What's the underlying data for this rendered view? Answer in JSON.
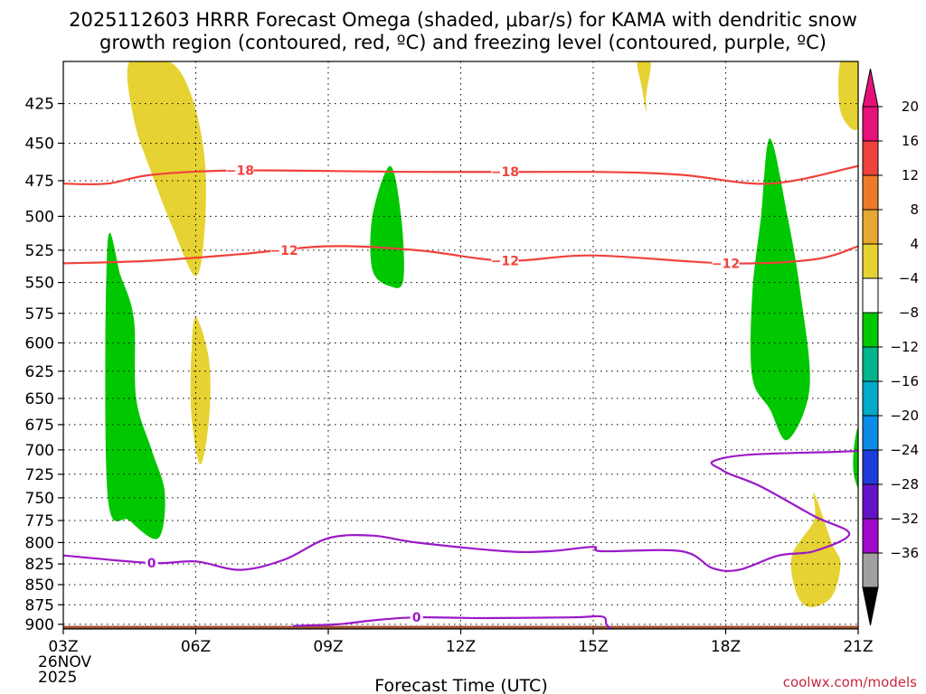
{
  "title_line1": "2025112603 HRRR Forecast Omega (shaded, μbar/s) for KAMA with dendritic snow",
  "title_line2": "growth region (contoured, red, ºC) and freezing level (contoured, purple, ºC)",
  "credit": "coolwx.com/models",
  "chart_data": {
    "type": "contour",
    "xlabel": "Forecast Time (UTC)",
    "x_ticks": [
      "03Z",
      "06Z",
      "09Z",
      "12Z",
      "15Z",
      "18Z",
      "21Z"
    ],
    "x_first_date": [
      "26NOV",
      "2025"
    ],
    "x_hours": [
      0,
      3,
      6,
      9,
      12,
      15,
      18
    ],
    "y_levels_mb": [
      425,
      450,
      475,
      500,
      525,
      550,
      575,
      600,
      625,
      650,
      675,
      700,
      725,
      750,
      775,
      800,
      825,
      850,
      875,
      900
    ],
    "y_range_mb": [
      400,
      906
    ],
    "y_scale": "log-pressure",
    "grid": true,
    "colorbar": {
      "unit": "μbar/s",
      "tick_labels": [
        "20",
        "16",
        "12",
        "8",
        "4",
        "−4",
        "−8",
        "−12",
        "−16",
        "−20",
        "−24",
        "−28",
        "−32",
        "−36"
      ],
      "bands": [
        {
          "from": 20,
          "to": 24,
          "color": "#e6127a"
        },
        {
          "from": 16,
          "to": 20,
          "color": "#f0423c"
        },
        {
          "from": 12,
          "to": 16,
          "color": "#ec7a28"
        },
        {
          "from": 8,
          "to": 12,
          "color": "#e6a832"
        },
        {
          "from": 4,
          "to": 8,
          "color": "#e6d232"
        },
        {
          "from": -4,
          "to": 4,
          "color": "#ffffff"
        },
        {
          "from": -8,
          "to": -4,
          "color": "#00c800"
        },
        {
          "from": -12,
          "to": -8,
          "color": "#00b48c"
        },
        {
          "from": -16,
          "to": -12,
          "color": "#00aac8"
        },
        {
          "from": -20,
          "to": -16,
          "color": "#0a8ce6"
        },
        {
          "from": -24,
          "to": -20,
          "color": "#1e3cdc"
        },
        {
          "from": -28,
          "to": -24,
          "color": "#6414c8"
        },
        {
          "from": -32,
          "to": -28,
          "color": "#a00ac8"
        },
        {
          "from": -36,
          "to": -32,
          "color": "#a0a0a0"
        }
      ],
      "low_arrow_color": "#000000",
      "high_arrow_color": "#e6127a"
    },
    "omega_regions": [
      {
        "sign": "upward",
        "color": "#00c800",
        "points": [
          [
            1.0,
            521
          ],
          [
            1.3,
            545
          ],
          [
            1.6,
            580
          ],
          [
            1.65,
            650
          ],
          [
            2.0,
            700
          ],
          [
            2.3,
            745
          ],
          [
            2.15,
            795
          ],
          [
            1.5,
            775
          ],
          [
            1.0,
            745
          ]
        ]
      },
      {
        "sign": "upward",
        "color": "#00c800",
        "points": [
          [
            7.4,
            465
          ],
          [
            7.65,
            500
          ],
          [
            7.7,
            548
          ],
          [
            7.4,
            553
          ],
          [
            7.0,
            540
          ],
          [
            7.0,
            500
          ]
        ]
      },
      {
        "sign": "upward",
        "color": "#00c800",
        "points": [
          [
            16.0,
            447
          ],
          [
            16.4,
            500
          ],
          [
            16.7,
            560
          ],
          [
            16.9,
            640
          ],
          [
            16.4,
            690
          ],
          [
            16.0,
            660
          ],
          [
            15.6,
            630
          ],
          [
            15.6,
            560
          ],
          [
            15.8,
            500
          ]
        ]
      },
      {
        "sign": "upward",
        "color": "#00c800",
        "points": [
          [
            18.0,
            680
          ],
          [
            18.05,
            740
          ],
          [
            17.9,
            725
          ],
          [
            17.9,
            700
          ]
        ]
      },
      {
        "sign": "downward",
        "color": "#e6d232",
        "points": [
          [
            1.5,
            400
          ],
          [
            2.4,
            400
          ],
          [
            2.9,
            420
          ],
          [
            3.2,
            460
          ],
          [
            3.2,
            510
          ],
          [
            3.0,
            545
          ],
          [
            2.5,
            510
          ],
          [
            2.0,
            470
          ],
          [
            1.6,
            435
          ]
        ]
      },
      {
        "sign": "downward",
        "color": "#e6d232",
        "points": [
          [
            3.0,
            578
          ],
          [
            3.3,
            615
          ],
          [
            3.3,
            670
          ],
          [
            3.1,
            715
          ],
          [
            2.9,
            665
          ],
          [
            2.9,
            610
          ]
        ]
      },
      {
        "sign": "downward",
        "color": "#e6d232",
        "points": [
          [
            13.0,
            400
          ],
          [
            13.3,
            400
          ],
          [
            13.2,
            420
          ],
          [
            13.2,
            430
          ],
          [
            13.1,
            415
          ]
        ]
      },
      {
        "sign": "downward",
        "color": "#e6d232",
        "points": [
          [
            17.6,
            400
          ],
          [
            18.0,
            400
          ],
          [
            18.0,
            440
          ],
          [
            17.6,
            430
          ]
        ]
      },
      {
        "sign": "downward",
        "color": "#e6d232",
        "points": [
          [
            17.0,
            745
          ],
          [
            17.4,
            800
          ],
          [
            17.6,
            825
          ],
          [
            17.4,
            865
          ],
          [
            16.9,
            878
          ],
          [
            16.6,
            860
          ],
          [
            16.5,
            815
          ],
          [
            17.0,
            775
          ]
        ]
      }
    ],
    "contours": [
      {
        "name": "dendritic",
        "value": "-18",
        "color": "#f0423c",
        "label_positions_h": [
          4.0,
          10.0
        ],
        "points": [
          [
            0,
            477
          ],
          [
            1,
            477
          ],
          [
            2,
            471
          ],
          [
            4,
            468
          ],
          [
            8,
            469
          ],
          [
            12,
            469
          ],
          [
            14,
            471
          ],
          [
            16,
            477
          ],
          [
            18,
            465
          ]
        ]
      },
      {
        "name": "dendritic",
        "value": "-12",
        "color": "#f0423c",
        "label_positions_h": [
          5.0,
          10.0,
          15.0
        ],
        "points": [
          [
            0,
            535
          ],
          [
            2,
            533
          ],
          [
            4,
            528
          ],
          [
            6,
            522
          ],
          [
            8,
            525
          ],
          [
            10,
            533
          ],
          [
            12,
            529
          ],
          [
            15,
            535
          ],
          [
            17,
            532
          ],
          [
            18,
            522
          ]
        ]
      },
      {
        "name": "freezing",
        "value": "0",
        "color": "#9b19c8",
        "label_positions_h": [
          2.0
        ],
        "points": [
          [
            0,
            815
          ],
          [
            2,
            824
          ],
          [
            3,
            822
          ],
          [
            4,
            832
          ],
          [
            5,
            820
          ],
          [
            6,
            795
          ],
          [
            7,
            792
          ],
          [
            8,
            800
          ],
          [
            10,
            810
          ],
          [
            11,
            810
          ],
          [
            12,
            805
          ],
          [
            12.2,
            810
          ],
          [
            14,
            810
          ],
          [
            14.7,
            830
          ],
          [
            15.3,
            832
          ],
          [
            16.2,
            815
          ],
          [
            17,
            810
          ],
          [
            17.8,
            790
          ],
          [
            17.0,
            770
          ],
          [
            15.8,
            738
          ],
          [
            15.1,
            725
          ],
          [
            14.9,
            720
          ],
          [
            14.7,
            712
          ],
          [
            15.5,
            705
          ],
          [
            17.5,
            702
          ],
          [
            18,
            701
          ]
        ]
      },
      {
        "name": "freezing",
        "value": "0",
        "color": "#9b19c8",
        "label_positions_h": [
          8.0
        ],
        "points": [
          [
            5.2,
            902
          ],
          [
            6.2,
            900
          ],
          [
            7.0,
            895
          ],
          [
            8.0,
            891
          ],
          [
            9.5,
            892
          ],
          [
            11.5,
            891
          ],
          [
            12.2,
            890
          ],
          [
            12.3,
            900
          ],
          [
            12.4,
            906
          ]
        ]
      }
    ],
    "terrain": {
      "color": "#a0522d",
      "top_mb": 902
    }
  }
}
